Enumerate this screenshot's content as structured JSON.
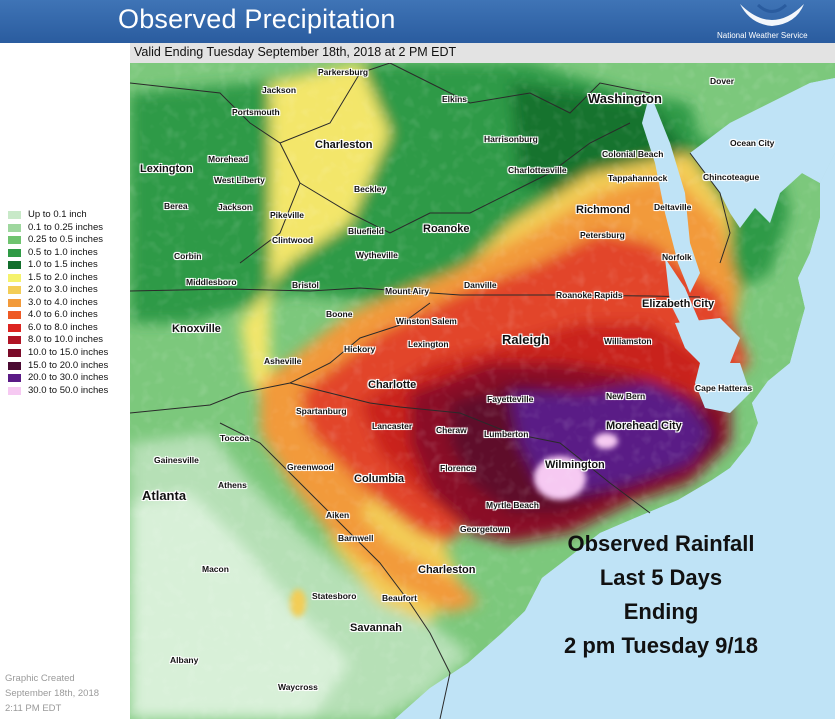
{
  "header": {
    "title": "Observed Precipitation",
    "agency": "National Weather Service"
  },
  "subheader": "Valid Ending Tuesday September 18th, 2018 at 2 PM EDT",
  "legend": [
    {
      "label": "Up to 0.1 inch",
      "color": "#c8e9c8"
    },
    {
      "label": "0.1 to 0.25 inches",
      "color": "#9ed79e"
    },
    {
      "label": "0.25 to 0.5 inches",
      "color": "#6fc36f"
    },
    {
      "label": "0.5 to 1.0 inches",
      "color": "#2f9a45"
    },
    {
      "label": "1.0 to 1.5 inches",
      "color": "#126e2c"
    },
    {
      "label": "1.5 to 2.0 inches",
      "color": "#f5f26c"
    },
    {
      "label": "2.0 to 3.0 inches",
      "color": "#f3cd57"
    },
    {
      "label": "3.0 to 4.0 inches",
      "color": "#f29a3a"
    },
    {
      "label": "4.0 to 6.0 inches",
      "color": "#ee5a25"
    },
    {
      "label": "6.0 to 8.0 inches",
      "color": "#dc2420"
    },
    {
      "label": "8.0 to 10.0 inches",
      "color": "#b01425"
    },
    {
      "label": "10.0 to 15.0 inches",
      "color": "#7a0a28"
    },
    {
      "label": "15.0 to 20.0 inches",
      "color": "#4a0a32"
    },
    {
      "label": "20.0 to 30.0 inches",
      "color": "#5a1a86"
    },
    {
      "label": "30.0 to 50.0 inches",
      "color": "#f6c9f2"
    }
  ],
  "credit": {
    "line1": "Graphic Created",
    "line2": "September 18th, 2018",
    "line3": "2:11 PM EDT"
  },
  "overlay": {
    "line1": "Observed Rainfall",
    "line2": "Last 5 Days",
    "line3": "Ending",
    "line4": "2 pm Tuesday 9/18"
  },
  "cities": {
    "parkersburg": "Parkersburg",
    "jackson_oh": "Jackson",
    "portsmouth": "Portsmouth",
    "elkins": "Elkins",
    "washington": "Washington",
    "dover": "Dover",
    "charleston_wv": "Charleston",
    "harrisonburg": "Harrisonburg",
    "ocean_city": "Ocean City",
    "lexington_ky": "Lexington",
    "morehead_ky": "Morehead",
    "west_liberty": "West Liberty",
    "colonial_beach": "Colonial Beach",
    "charlottesville": "Charlottesville",
    "tappahannock": "Tappahannock",
    "chincoteague": "Chincoteague",
    "beckley": "Beckley",
    "berea": "Berea",
    "jackson_ky": "Jackson",
    "richmond": "Richmond",
    "deltaville": "Deltaville",
    "pikeville": "Pikeville",
    "bluefield": "Bluefield",
    "roanoke": "Roanoke",
    "clintwood": "Clintwood",
    "petersburg": "Petersburg",
    "corbin": "Corbin",
    "wytheville": "Wytheville",
    "norfolk": "Norfolk",
    "middlesboro": "Middlesboro",
    "bristol": "Bristol",
    "mount_airy": "Mount Airy",
    "danville": "Danville",
    "roanoke_rapids": "Roanoke Rapids",
    "elizabeth_city": "Elizabeth City",
    "knoxville": "Knoxville",
    "boone": "Boone",
    "winston_salem": "Winston Salem",
    "raleigh": "Raleigh",
    "williamston": "Williamston",
    "hickory": "Hickory",
    "lexington_nc": "Lexington",
    "asheville": "Asheville",
    "charlotte": "Charlotte",
    "cape_hatteras": "Cape Hatteras",
    "fayetteville": "Fayetteville",
    "new_bern": "New Bern",
    "spartanburg": "Spartanburg",
    "lancaster": "Lancaster",
    "cheraw": "Cheraw",
    "lumberton": "Lumberton",
    "morehead_city": "Morehead City",
    "toccoa": "Toccoa",
    "gainesville": "Gainesville",
    "greenwood": "Greenwood",
    "florence": "Florence",
    "wilmington": "Wilmington",
    "athens": "Athens",
    "columbia": "Columbia",
    "atlanta": "Atlanta",
    "myrtle_beach": "Myrtle Beach",
    "aiken": "Aiken",
    "georgetown": "Georgetown",
    "barnwell": "Barnwell",
    "macon": "Macon",
    "charleston_sc": "Charleston",
    "statesboro": "Statesboro",
    "beaufort": "Beaufort",
    "savannah": "Savannah",
    "albany": "Albany",
    "waycross": "Waycross"
  },
  "colors": {
    "ocean": "#bfe3f6",
    "header_blue": "#2f62a6",
    "state_line": "#2a2a2a"
  }
}
